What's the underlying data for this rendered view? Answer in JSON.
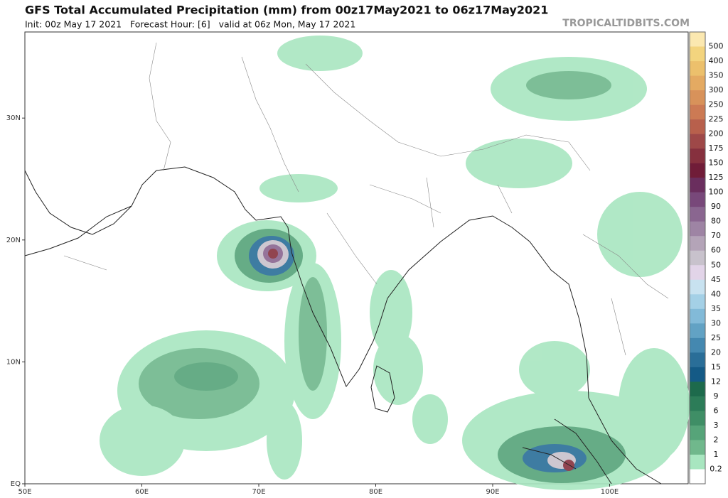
{
  "header": {
    "title": "GFS Total Accumulated Precipitation (mm) from 00z17May2021 to 06z17May2021",
    "subtitle": "Init: 00z May 17 2021   Forecast Hour: [6]   valid at 06z Mon, May 17 2021",
    "site": "TROPICALTIDBITS.COM"
  },
  "map": {
    "lat_labels": [
      "EQ",
      "10N",
      "20N",
      "30N"
    ],
    "lon_labels": [
      "50E",
      "60E",
      "70E",
      "80E",
      "90E",
      "100E"
    ]
  },
  "colorbar": {
    "labels": [
      "500",
      "400",
      "350",
      "300",
      "250",
      "225",
      "200",
      "175",
      "150",
      "125",
      "100",
      "90",
      "80",
      "70",
      "60",
      "50",
      "45",
      "40",
      "35",
      "30",
      "25",
      "20",
      "15",
      "12",
      "9",
      "6",
      "3",
      "2",
      "1",
      "0.2"
    ],
    "colors": [
      "#fbe8b0",
      "#f3d47e",
      "#ecc06c",
      "#e4aa62",
      "#d8925a",
      "#cc7a54",
      "#b8604c",
      "#9e4848",
      "#86303e",
      "#701c38",
      "#6a2e5e",
      "#78487a",
      "#8a6690",
      "#9e84a4",
      "#b4a4b8",
      "#c8c2cc",
      "#e2d4e8",
      "#c8e2f0",
      "#a4d0e6",
      "#82bad8",
      "#62a2c4",
      "#4488b0",
      "#2a6e98",
      "#145a86",
      "#1d6a4c",
      "#2c7c58",
      "#3f8e66",
      "#56a479",
      "#70b88c",
      "#a8e6c0",
      "#ffffff"
    ]
  }
}
